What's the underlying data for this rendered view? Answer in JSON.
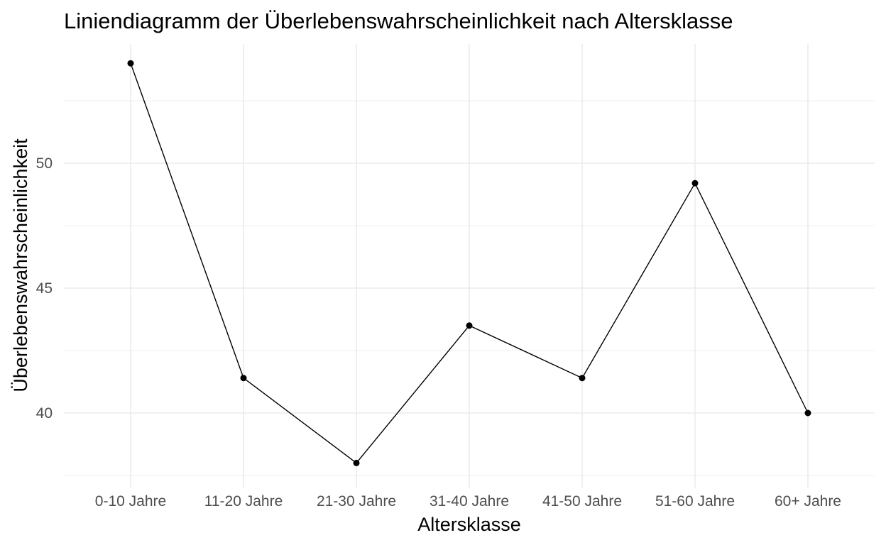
{
  "chart_data": {
    "type": "line",
    "title": "Liniendiagramm der Überlebenswahrscheinlichkeit nach Altersklasse",
    "xlabel": "Altersklasse",
    "ylabel": "Überlebenswahrscheinlichkeit",
    "categories": [
      "0-10 Jahre",
      "11-20 Jahre",
      "21-30 Jahre",
      "31-40 Jahre",
      "41-50 Jahre",
      "51-60 Jahre",
      "60+ Jahre"
    ],
    "values": [
      54.0,
      41.4,
      38.0,
      43.5,
      41.4,
      49.2,
      40.0
    ],
    "y_ticks": [
      40,
      45,
      50
    ],
    "y_tick_labels": [
      "40",
      "45",
      "50"
    ],
    "ylim": [
      37.3,
      54.8
    ],
    "grid": true,
    "legend": "none",
    "colors": {
      "line": "#000000",
      "point": "#000000",
      "grid": "#ebebeb",
      "tick_text": "#4d4d4d"
    }
  }
}
